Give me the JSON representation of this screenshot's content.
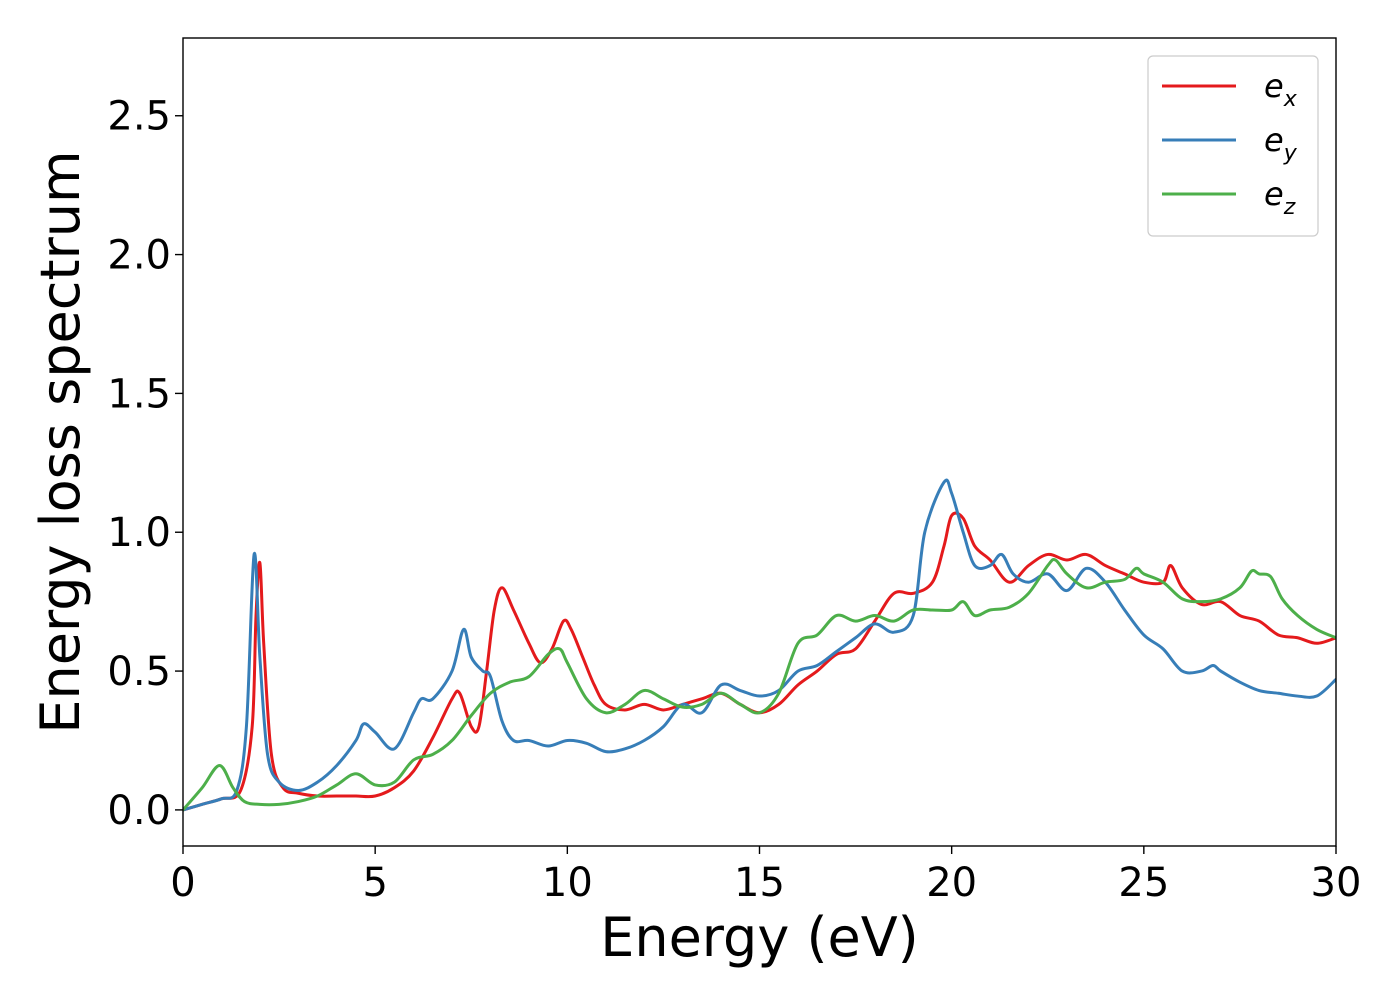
{
  "chart_data": {
    "type": "line",
    "title": "",
    "xlabel": "Energy (eV)",
    "ylabel": "Energy loss spectrum",
    "xlim": [
      0,
      30
    ],
    "ylim": [
      -0.13,
      2.78
    ],
    "xticks": [
      0,
      5,
      10,
      15,
      20,
      25,
      30
    ],
    "xtick_labels": [
      "0",
      "5",
      "10",
      "15",
      "20",
      "25",
      "30"
    ],
    "yticks": [
      0.0,
      0.5,
      1.0,
      1.5,
      2.0,
      2.5
    ],
    "ytick_labels": [
      "0.0",
      "0.5",
      "1.0",
      "1.5",
      "2.0",
      "2.5"
    ],
    "grid": false,
    "legend_position": "top-right",
    "series": [
      {
        "name": "e_x",
        "label_base": "e",
        "label_sub": "x",
        "color": "#e41a1c",
        "x": [
          0,
          0.5,
          1.0,
          1.5,
          1.8,
          1.9,
          2.0,
          2.1,
          2.3,
          2.6,
          3.0,
          3.5,
          4.0,
          4.5,
          5.0,
          5.5,
          6.0,
          6.5,
          7.0,
          7.2,
          7.5,
          7.7,
          7.9,
          8.1,
          8.3,
          8.6,
          9.0,
          9.3,
          9.6,
          9.9,
          10.1,
          10.4,
          10.7,
          11.0,
          11.5,
          12.0,
          12.5,
          13.0,
          13.5,
          14.0,
          14.5,
          15.0,
          15.5,
          16.0,
          16.5,
          17.0,
          17.5,
          18.0,
          18.5,
          19.0,
          19.5,
          19.8,
          20.0,
          20.3,
          20.6,
          21.0,
          21.5,
          22.0,
          22.5,
          23.0,
          23.5,
          24.0,
          24.5,
          25.0,
          25.5,
          25.7,
          26.0,
          26.5,
          27.0,
          27.5,
          28.0,
          28.5,
          29.0,
          29.5,
          30.0
        ],
        "y": [
          0.0,
          0.02,
          0.04,
          0.07,
          0.3,
          0.7,
          0.89,
          0.6,
          0.2,
          0.08,
          0.06,
          0.05,
          0.05,
          0.05,
          0.05,
          0.08,
          0.14,
          0.26,
          0.4,
          0.42,
          0.3,
          0.3,
          0.5,
          0.72,
          0.8,
          0.72,
          0.6,
          0.53,
          0.58,
          0.68,
          0.65,
          0.55,
          0.45,
          0.38,
          0.36,
          0.38,
          0.36,
          0.38,
          0.4,
          0.42,
          0.38,
          0.35,
          0.38,
          0.45,
          0.5,
          0.56,
          0.58,
          0.68,
          0.78,
          0.78,
          0.82,
          0.95,
          1.06,
          1.05,
          0.95,
          0.9,
          0.82,
          0.88,
          0.92,
          0.9,
          0.92,
          0.88,
          0.85,
          0.82,
          0.82,
          0.88,
          0.8,
          0.74,
          0.75,
          0.7,
          0.68,
          0.63,
          0.62,
          0.6,
          0.62
        ]
      },
      {
        "name": "e_y",
        "label_base": "e",
        "label_sub": "y",
        "color": "#377eb8",
        "x": [
          0,
          0.5,
          1.0,
          1.4,
          1.65,
          1.85,
          2.0,
          2.2,
          2.5,
          3.0,
          3.5,
          4.0,
          4.5,
          4.7,
          5.0,
          5.5,
          6.0,
          6.2,
          6.5,
          7.0,
          7.3,
          7.5,
          7.8,
          8.0,
          8.3,
          8.6,
          9.0,
          9.5,
          10.0,
          10.5,
          11.0,
          11.5,
          12.0,
          12.5,
          13.0,
          13.5,
          14.0,
          14.5,
          15.0,
          15.5,
          16.0,
          16.5,
          17.0,
          17.5,
          18.0,
          18.5,
          19.0,
          19.3,
          19.8,
          20.0,
          20.3,
          20.6,
          21.0,
          21.3,
          21.6,
          22.0,
          22.5,
          23.0,
          23.5,
          24.0,
          24.5,
          25.0,
          25.5,
          26.0,
          26.5,
          26.8,
          27.0,
          27.5,
          28.0,
          28.5,
          29.0,
          29.5,
          30.0
        ],
        "y": [
          0.0,
          0.02,
          0.04,
          0.07,
          0.3,
          0.92,
          0.55,
          0.2,
          0.1,
          0.07,
          0.1,
          0.16,
          0.25,
          0.31,
          0.28,
          0.22,
          0.35,
          0.4,
          0.4,
          0.5,
          0.65,
          0.55,
          0.5,
          0.48,
          0.32,
          0.25,
          0.25,
          0.23,
          0.25,
          0.24,
          0.21,
          0.22,
          0.25,
          0.3,
          0.38,
          0.35,
          0.45,
          0.43,
          0.41,
          0.43,
          0.5,
          0.52,
          0.57,
          0.62,
          0.67,
          0.64,
          0.7,
          1.0,
          1.18,
          1.14,
          1.0,
          0.88,
          0.88,
          0.92,
          0.85,
          0.82,
          0.85,
          0.79,
          0.87,
          0.82,
          0.72,
          0.63,
          0.58,
          0.5,
          0.5,
          0.52,
          0.5,
          0.46,
          0.43,
          0.42,
          0.41,
          0.41,
          0.47
        ]
      },
      {
        "name": "e_z",
        "label_base": "e",
        "label_sub": "z",
        "color": "#4daf4a",
        "x": [
          0,
          0.5,
          0.95,
          1.3,
          1.6,
          2.0,
          2.5,
          3.0,
          3.5,
          4.0,
          4.5,
          5.0,
          5.5,
          6.0,
          6.5,
          7.0,
          7.5,
          8.0,
          8.5,
          9.0,
          9.5,
          9.8,
          10.0,
          10.5,
          11.0,
          11.5,
          12.0,
          12.5,
          13.0,
          13.5,
          14.0,
          14.5,
          15.0,
          15.5,
          16.0,
          16.5,
          17.0,
          17.5,
          18.0,
          18.5,
          19.0,
          19.5,
          20.0,
          20.3,
          20.6,
          21.0,
          21.5,
          22.0,
          22.5,
          22.7,
          23.0,
          23.5,
          24.0,
          24.5,
          24.8,
          25.0,
          25.5,
          26.0,
          26.5,
          27.0,
          27.5,
          27.8,
          28.0,
          28.3,
          28.6,
          29.0,
          29.5,
          30.0
        ],
        "y": [
          0.0,
          0.08,
          0.16,
          0.08,
          0.03,
          0.02,
          0.02,
          0.03,
          0.05,
          0.09,
          0.13,
          0.09,
          0.1,
          0.18,
          0.2,
          0.25,
          0.34,
          0.42,
          0.46,
          0.48,
          0.56,
          0.58,
          0.53,
          0.4,
          0.35,
          0.38,
          0.43,
          0.4,
          0.37,
          0.38,
          0.42,
          0.38,
          0.35,
          0.42,
          0.6,
          0.63,
          0.7,
          0.68,
          0.7,
          0.68,
          0.72,
          0.72,
          0.72,
          0.75,
          0.7,
          0.72,
          0.73,
          0.78,
          0.88,
          0.9,
          0.85,
          0.8,
          0.82,
          0.83,
          0.87,
          0.85,
          0.82,
          0.76,
          0.75,
          0.76,
          0.8,
          0.86,
          0.85,
          0.84,
          0.76,
          0.7,
          0.65,
          0.62
        ]
      }
    ]
  }
}
